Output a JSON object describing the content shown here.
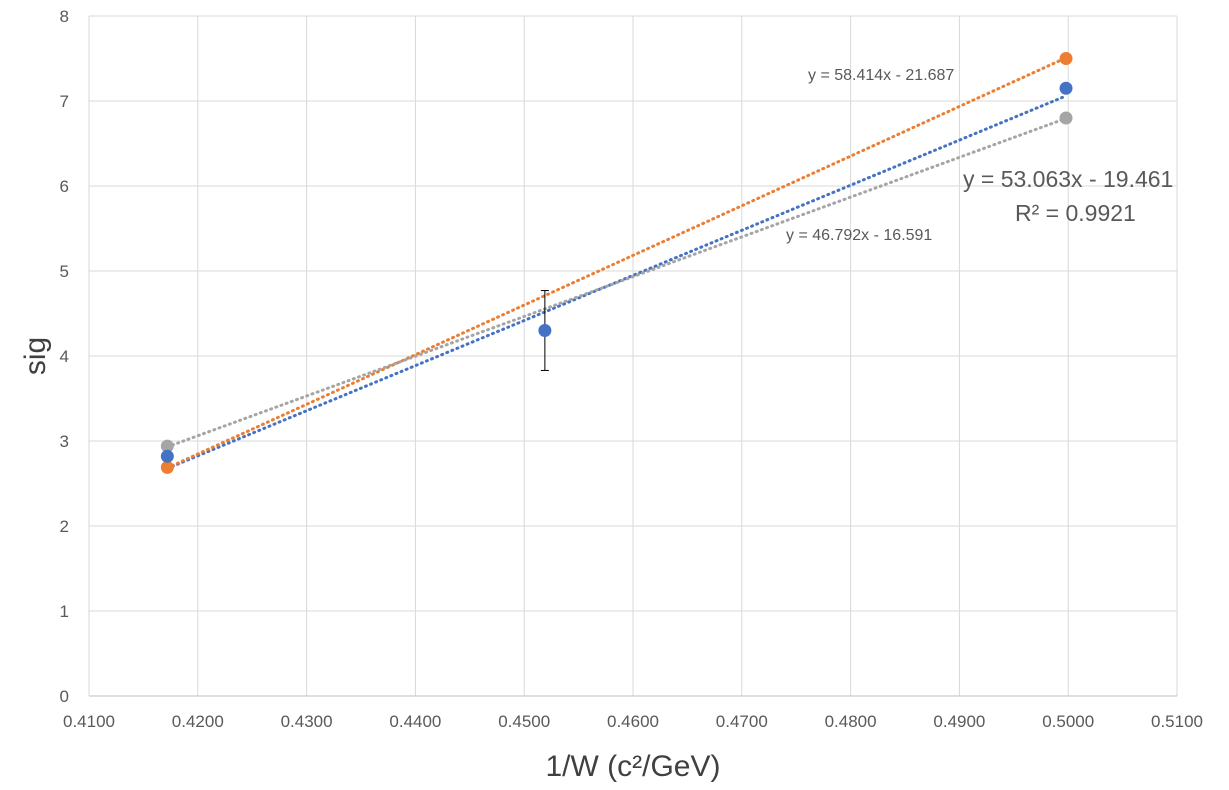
{
  "chart_data": {
    "type": "scatter",
    "title": "",
    "xlabel": "1/W (c²/GeV)",
    "ylabel": "sig",
    "xlim": [
      0.41,
      0.51
    ],
    "ylim": [
      0,
      8
    ],
    "x_ticks": [
      "0.4100",
      "0.4200",
      "0.4300",
      "0.4400",
      "0.4500",
      "0.4600",
      "0.4700",
      "0.4800",
      "0.4900",
      "0.5000",
      "0.5100"
    ],
    "y_ticks": [
      "0",
      "1",
      "2",
      "3",
      "4",
      "5",
      "6",
      "7",
      "8"
    ],
    "grid": true,
    "legend": "none",
    "series": [
      {
        "color": "#4472c4",
        "points": [
          {
            "x": 0.4172,
            "y": 2.82
          },
          {
            "x": 0.4519,
            "y": 4.3,
            "err": 0.47
          },
          {
            "x": 0.4998,
            "y": 7.15
          }
        ],
        "trendline": {
          "slope": 53.063,
          "intercept": -19.461,
          "label": "y = 53.063x - 19.461",
          "r2_label": "R² = 0.9921"
        }
      },
      {
        "color": "#ed7d31",
        "points": [
          {
            "x": 0.4172,
            "y": 2.69
          },
          {
            "x": 0.4998,
            "y": 7.5
          }
        ],
        "trendline": {
          "slope": 58.414,
          "intercept": -21.687,
          "label": "y = 58.414x - 21.687"
        }
      },
      {
        "color": "#a5a5a5",
        "points": [
          {
            "x": 0.4172,
            "y": 2.94
          },
          {
            "x": 0.4998,
            "y": 6.8
          }
        ],
        "trendline": {
          "slope": 46.792,
          "intercept": -16.591,
          "label": "y = 46.792x - 16.591"
        }
      }
    ]
  }
}
